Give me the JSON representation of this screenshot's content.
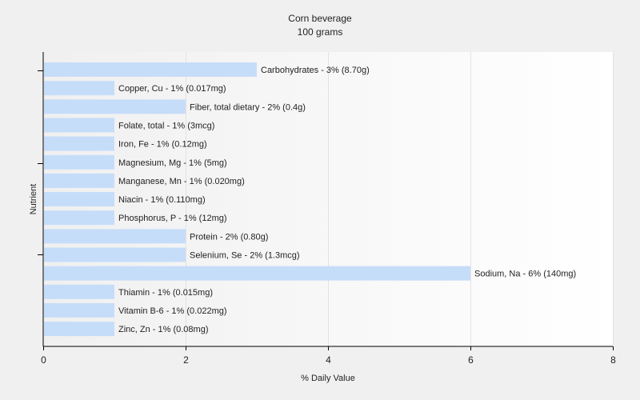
{
  "chart_data": {
    "type": "bar",
    "orientation": "horizontal",
    "title": "Corn beverage",
    "subtitle": "100 grams",
    "xlabel": "% Daily Value",
    "ylabel": "Nutrient",
    "xlim": [
      0,
      8
    ],
    "xticks": [
      "0",
      "2",
      "4",
      "6",
      "8"
    ],
    "grid": true,
    "bar_color": "#c6ddfa",
    "categories": [
      "Carbohydrates",
      "Copper, Cu",
      "Fiber, total dietary",
      "Folate, total",
      "Iron, Fe",
      "Magnesium, Mg",
      "Manganese, Mn",
      "Niacin",
      "Phosphorus, P",
      "Protein",
      "Selenium, Se",
      "Sodium, Na",
      "Thiamin",
      "Vitamin B-6",
      "Zinc, Zn"
    ],
    "values": [
      3,
      1,
      2,
      1,
      1,
      1,
      1,
      1,
      1,
      2,
      2,
      6,
      1,
      1,
      1
    ],
    "labels": [
      "Carbohydrates - 3% (8.70g)",
      "Copper, Cu - 1% (0.017mg)",
      "Fiber, total dietary - 2% (0.4g)",
      "Folate, total - 1% (3mcg)",
      "Iron, Fe - 1% (0.12mg)",
      "Magnesium, Mg - 1% (5mg)",
      "Manganese, Mn - 1% (0.020mg)",
      "Niacin - 1% (0.110mg)",
      "Phosphorus, P - 1% (12mg)",
      "Protein - 2% (0.80g)",
      "Selenium, Se - 2% (1.3mcg)",
      "Sodium, Na - 6% (140mg)",
      "Thiamin - 1% (0.015mg)",
      "Vitamin B-6 - 1% (0.022mg)",
      "Zinc, Zn - 1% (0.08mg)"
    ]
  }
}
